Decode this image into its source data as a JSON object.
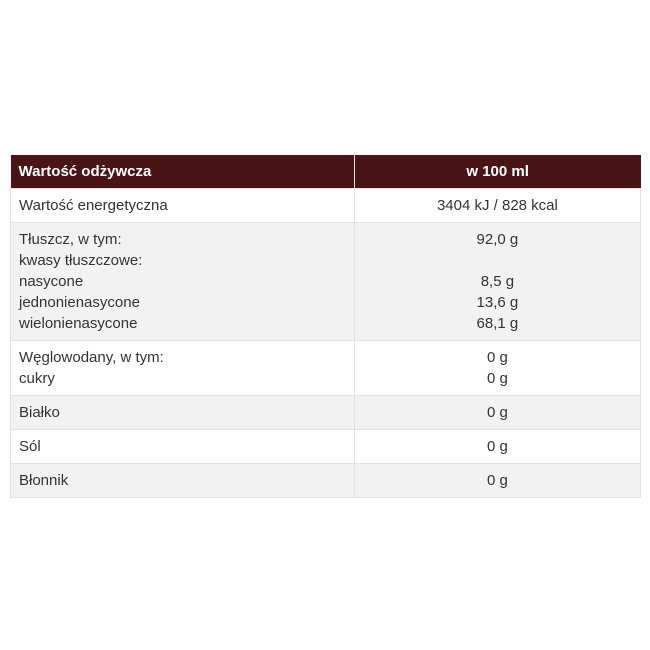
{
  "header": {
    "name": "Wartość odżywcza",
    "value": "w 100 ml"
  },
  "rows": [
    {
      "names": [
        "Wartość energetyczna"
      ],
      "values": [
        "3404 kJ / 828 kcal"
      ]
    },
    {
      "names": [
        "Tłuszcz, w tym:",
        "kwasy tłuszczowe:",
        "nasycone",
        "jednonienasycone",
        "wielonienasycone"
      ],
      "values": [
        "92,0 g",
        "",
        "8,5 g",
        "13,6 g",
        "68,1 g"
      ]
    },
    {
      "names": [
        "Węglowodany, w tym:",
        "cukry"
      ],
      "values": [
        "0 g",
        "0 g"
      ]
    },
    {
      "names": [
        "Białko"
      ],
      "values": [
        "0 g"
      ]
    },
    {
      "names": [
        "Sól"
      ],
      "values": [
        "0 g"
      ]
    },
    {
      "names": [
        "Błonnik"
      ],
      "values": [
        "0 g"
      ]
    }
  ],
  "colors": {
    "header_bg": "#4a1517",
    "stripe": "#f2f2f2"
  }
}
